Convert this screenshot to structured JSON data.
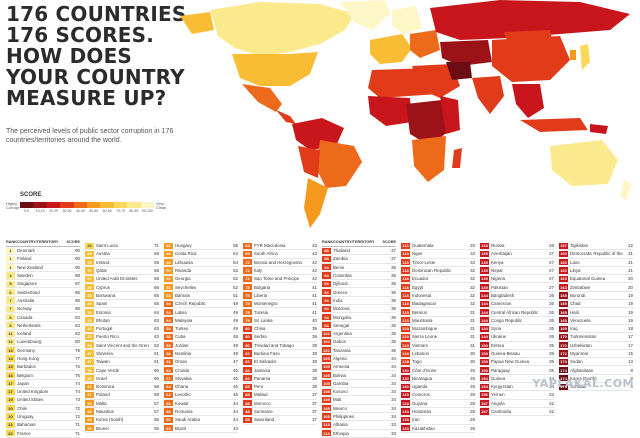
{
  "header": {
    "title_lines": [
      "176 COUNTRIES.",
      "176 SCORES.",
      "HOW DOES",
      "YOUR COUNTRY",
      "MEASURE UP?"
    ],
    "subtitle": "The perceived levels of public sector corruption in 176 countries/territories around the world."
  },
  "legend": {
    "title": "SCORE",
    "left_label": "Highly Corrupt",
    "right_label": "Very Clean",
    "ranges": [
      "0-9",
      "10-19",
      "20-29",
      "30-39",
      "40-49",
      "50-59",
      "60-69",
      "70-79",
      "80-89",
      "90-100"
    ],
    "colors": [
      "#6e0c14",
      "#9b1218",
      "#c8161c",
      "#e23b1a",
      "#ee6a1b",
      "#f59a1d",
      "#f9bd35",
      "#fad95a",
      "#fbe98d",
      "#fdf6c6"
    ]
  },
  "table_headers": {
    "rank": "RANK",
    "country": "COUNTRY/TERRITORY",
    "score": "SCORE"
  },
  "columns": [
    {
      "rows": [
        [
          "1",
          "Denmark",
          "90"
        ],
        [
          "1",
          "Finland",
          "90"
        ],
        [
          "1",
          "New Zealand",
          "90"
        ],
        [
          "4",
          "Sweden",
          "88"
        ],
        [
          "5",
          "Singapore",
          "87"
        ],
        [
          "6",
          "Switzerland",
          "86"
        ],
        [
          "7",
          "Australia",
          "85"
        ],
        [
          "7",
          "Norway",
          "85"
        ],
        [
          "9",
          "Canada",
          "84"
        ],
        [
          "9",
          "Netherlands",
          "84"
        ],
        [
          "11",
          "Iceland",
          "82"
        ],
        [
          "12",
          "Luxembourg",
          "80"
        ],
        [
          "13",
          "Germany",
          "79"
        ],
        [
          "14",
          "Hong Kong",
          "77"
        ],
        [
          "15",
          "Barbados",
          "76"
        ],
        [
          "16",
          "Belgium",
          "75"
        ],
        [
          "17",
          "Japan",
          "74"
        ],
        [
          "17",
          "United Kingdom",
          "74"
        ],
        [
          "19",
          "United States",
          "73"
        ],
        [
          "20",
          "Chile",
          "72"
        ],
        [
          "20",
          "Uruguay",
          "72"
        ],
        [
          "22",
          "Bahamas",
          "71"
        ],
        [
          "22",
          "France",
          "71"
        ]
      ]
    },
    {
      "rows": [
        [
          "22",
          "Saint Lucia",
          "71"
        ],
        [
          "25",
          "Austria",
          "69"
        ],
        [
          "25",
          "Ireland",
          "69"
        ],
        [
          "27",
          "Qatar",
          "68"
        ],
        [
          "27",
          "United Arab Emirates",
          "68"
        ],
        [
          "29",
          "Cyprus",
          "66"
        ],
        [
          "30",
          "Botswana",
          "65"
        ],
        [
          "30",
          "Spain",
          "65"
        ],
        [
          "32",
          "Estonia",
          "64"
        ],
        [
          "33",
          "Bhutan",
          "63"
        ],
        [
          "33",
          "Portugal",
          "63"
        ],
        [
          "33",
          "Puerto Rico",
          "63"
        ],
        [
          "36",
          "Saint Vincent and the Grenadines",
          "62"
        ],
        [
          "37",
          "Slovenia",
          "61"
        ],
        [
          "37",
          "Taiwan",
          "61"
        ],
        [
          "39",
          "Cape Verde",
          "60"
        ],
        [
          "39",
          "Israel",
          "60"
        ],
        [
          "41",
          "Dominica",
          "58"
        ],
        [
          "41",
          "Poland",
          "58"
        ],
        [
          "43",
          "Malta",
          "57"
        ],
        [
          "43",
          "Mauritius",
          "57"
        ],
        [
          "45",
          "Korea (South)",
          "56"
        ],
        [
          "46",
          "Brunei",
          "55"
        ]
      ]
    },
    {
      "rows": [
        [
          "46",
          "Hungary",
          "55"
        ],
        [
          "48",
          "Costa Rica",
          "54"
        ],
        [
          "48",
          "Lithuania",
          "54"
        ],
        [
          "50",
          "Rwanda",
          "53"
        ],
        [
          "51",
          "Georgia",
          "52"
        ],
        [
          "51",
          "Seychelles",
          "52"
        ],
        [
          "53",
          "Bahrain",
          "51"
        ],
        [
          "54",
          "Czech Republic",
          "49"
        ],
        [
          "54",
          "Latvia",
          "49"
        ],
        [
          "54",
          "Malaysia",
          "49"
        ],
        [
          "54",
          "Turkey",
          "49"
        ],
        [
          "58",
          "Cuba",
          "48"
        ],
        [
          "58",
          "Jordan",
          "48"
        ],
        [
          "58",
          "Namibia",
          "48"
        ],
        [
          "61",
          "Oman",
          "47"
        ],
        [
          "62",
          "Croatia",
          "46"
        ],
        [
          "62",
          "Slovakia",
          "46"
        ],
        [
          "64",
          "Ghana",
          "45"
        ],
        [
          "64",
          "Lesotho",
          "45"
        ],
        [
          "66",
          "Kuwait",
          "44"
        ],
        [
          "66",
          "Romania",
          "44"
        ],
        [
          "66",
          "Saudi Arabia",
          "44"
        ],
        [
          "69",
          "Brazil",
          "43"
        ]
      ]
    },
    {
      "rows": [
        [
          "69",
          "FYR Macedonia",
          "43"
        ],
        [
          "69",
          "South Africa",
          "43"
        ],
        [
          "72",
          "Bosnia and Herzegovina",
          "42"
        ],
        [
          "72",
          "Italy",
          "42"
        ],
        [
          "72",
          "Sao Tome and Principe",
          "42"
        ],
        [
          "75",
          "Bulgaria",
          "41"
        ],
        [
          "75",
          "Liberia",
          "41"
        ],
        [
          "75",
          "Montenegro",
          "41"
        ],
        [
          "75",
          "Tunisia",
          "41"
        ],
        [
          "79",
          "Sri Lanka",
          "40"
        ],
        [
          "80",
          "China",
          "39"
        ],
        [
          "80",
          "Serbia",
          "39"
        ],
        [
          "80",
          "Trinidad and Tobago",
          "39"
        ],
        [
          "83",
          "Burkina Faso",
          "38"
        ],
        [
          "83",
          "El Salvador",
          "38"
        ],
        [
          "83",
          "Jamaica",
          "38"
        ],
        [
          "83",
          "Panama",
          "38"
        ],
        [
          "83",
          "Peru",
          "38"
        ],
        [
          "88",
          "Malawi",
          "37"
        ],
        [
          "88",
          "Morocco",
          "37"
        ],
        [
          "88",
          "Suriname",
          "37"
        ],
        [
          "88",
          "Swaziland",
          "37"
        ]
      ]
    },
    {
      "rows": [
        [
          "88",
          "Thailand",
          "37"
        ],
        [
          "88",
          "Zambia",
          "37"
        ],
        [
          "94",
          "Benin",
          "36"
        ],
        [
          "94",
          "Colombia",
          "36"
        ],
        [
          "94",
          "Djibouti",
          "36"
        ],
        [
          "94",
          "Greece",
          "36"
        ],
        [
          "94",
          "India",
          "36"
        ],
        [
          "94",
          "Moldova",
          "36"
        ],
        [
          "94",
          "Mongolia",
          "36"
        ],
        [
          "94",
          "Senegal",
          "36"
        ],
        [
          "102",
          "Argentina",
          "35"
        ],
        [
          "102",
          "Gabon",
          "35"
        ],
        [
          "102",
          "Tanzania",
          "35"
        ],
        [
          "105",
          "Algeria",
          "34"
        ],
        [
          "105",
          "Armenia",
          "34"
        ],
        [
          "105",
          "Bolivia",
          "34"
        ],
        [
          "105",
          "Gambia",
          "34"
        ],
        [
          "105",
          "Kosovo",
          "34"
        ],
        [
          "105",
          "Mali",
          "34"
        ],
        [
          "105",
          "Mexico",
          "34"
        ],
        [
          "105",
          "Philippines",
          "34"
        ],
        [
          "113",
          "Albania",
          "33"
        ],
        [
          "113",
          "Ethiopia",
          "33"
        ]
      ]
    },
    {
      "rows": [
        [
          "113",
          "Guatemala",
          "33"
        ],
        [
          "113",
          "Niger",
          "33"
        ],
        [
          "113",
          "Timor-Leste",
          "33"
        ],
        [
          "118",
          "Dominican Republic",
          "32"
        ],
        [
          "118",
          "Ecuador",
          "32"
        ],
        [
          "118",
          "Egypt",
          "32"
        ],
        [
          "118",
          "Indonesia",
          "32"
        ],
        [
          "118",
          "Madagascar",
          "32"
        ],
        [
          "123",
          "Belarus",
          "31"
        ],
        [
          "123",
          "Mauritania",
          "31"
        ],
        [
          "123",
          "Mozambique",
          "31"
        ],
        [
          "123",
          "Sierra Leone",
          "31"
        ],
        [
          "123",
          "Vietnam",
          "31"
        ],
        [
          "128",
          "Lebanon",
          "30"
        ],
        [
          "128",
          "Togo",
          "30"
        ],
        [
          "130",
          "Côte d'Ivoire",
          "29"
        ],
        [
          "130",
          "Nicaragua",
          "29"
        ],
        [
          "130",
          "Uganda",
          "29"
        ],
        [
          "133",
          "Comoros",
          "28"
        ],
        [
          "133",
          "Guyana",
          "28"
        ],
        [
          "133",
          "Honduras",
          "28"
        ],
        [
          "133",
          "Iran",
          "28"
        ],
        [
          "133",
          "Kazakhstan",
          "28"
        ]
      ]
    },
    {
      "rows": [
        [
          "133",
          "Russia",
          "28"
        ],
        [
          "139",
          "Azerbaijan",
          "27"
        ],
        [
          "139",
          "Kenya",
          "27"
        ],
        [
          "139",
          "Nepal",
          "27"
        ],
        [
          "139",
          "Nigeria",
          "27"
        ],
        [
          "139",
          "Pakistan",
          "27"
        ],
        [
          "144",
          "Bangladesh",
          "26"
        ],
        [
          "144",
          "Cameroon",
          "26"
        ],
        [
          "144",
          "Central African Republic",
          "26"
        ],
        [
          "144",
          "Congo Republic",
          "26"
        ],
        [
          "144",
          "Syria",
          "26"
        ],
        [
          "144",
          "Ukraine",
          "26"
        ],
        [
          "150",
          "Eritrea",
          "25"
        ],
        [
          "150",
          "Guinea-Bissau",
          "25"
        ],
        [
          "150",
          "Papua New Guinea",
          "25"
        ],
        [
          "150",
          "Paraguay",
          "25"
        ],
        [
          "154",
          "Guinea",
          "24"
        ],
        [
          "154",
          "Kyrgyzstan",
          "24"
        ],
        [
          "156",
          "Yemen",
          "23"
        ],
        [
          "157",
          "Angola",
          "22"
        ],
        [
          "157",
          "Cambodia",
          "22"
        ]
      ]
    },
    {
      "rows": [
        [
          "157",
          "Tajikistan",
          "22"
        ],
        [
          "160",
          "Democratic Republic of the Congo",
          "21"
        ],
        [
          "160",
          "Laos",
          "21"
        ],
        [
          "160",
          "Libya",
          "21"
        ],
        [
          "163",
          "Equatorial Guinea",
          "20"
        ],
        [
          "163",
          "Zimbabwe",
          "20"
        ],
        [
          "165",
          "Burundi",
          "19"
        ],
        [
          "165",
          "Chad",
          "19"
        ],
        [
          "165",
          "Haiti",
          "19"
        ],
        [
          "165",
          "Venezuela",
          "19"
        ],
        [
          "169",
          "Iraq",
          "18"
        ],
        [
          "170",
          "Turkmenistan",
          "17"
        ],
        [
          "170",
          "Uzbekistan",
          "17"
        ],
        [
          "172",
          "Myanmar",
          "15"
        ],
        [
          "173",
          "Sudan",
          "13"
        ],
        [
          "174",
          "Afghanistan",
          "8"
        ],
        [
          "174",
          "Korea (North)",
          "8"
        ],
        [
          "174",
          "Somalia",
          "8"
        ]
      ]
    }
  ],
  "watermark": "YAPLAKAL.COM"
}
